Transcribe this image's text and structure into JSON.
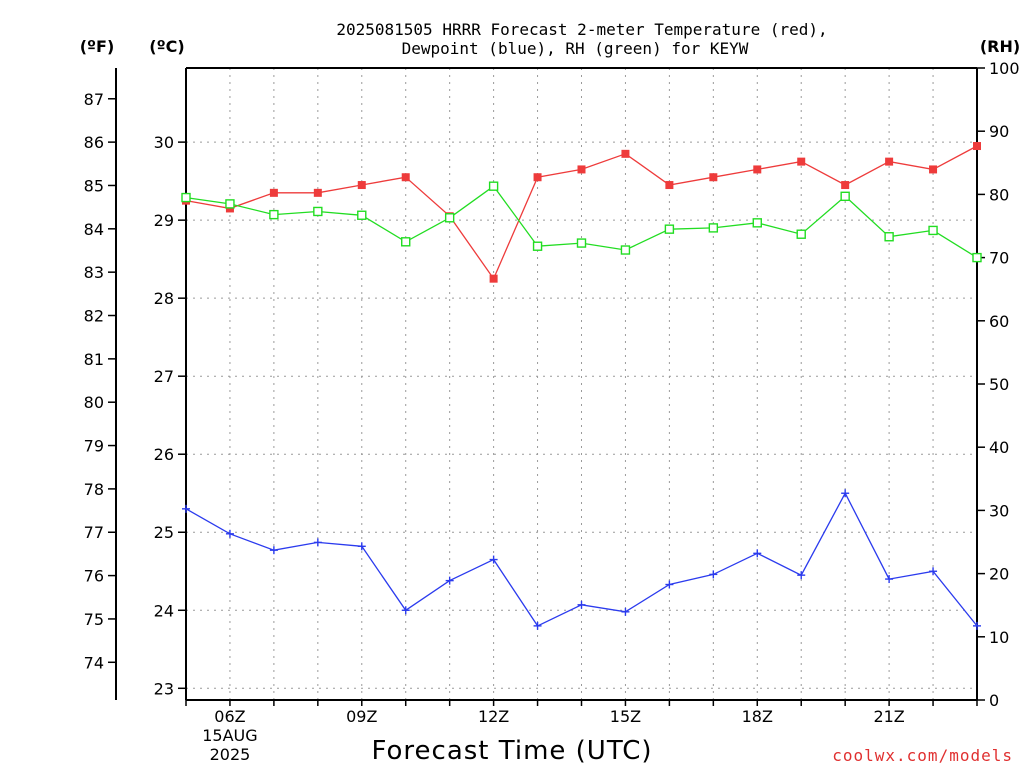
{
  "title_line1": "2025081505 HRRR Forecast 2-meter Temperature (red),",
  "title_line2": "Dewpoint (blue), RH (green) for KEYW",
  "unit_f": "(ºF)",
  "unit_c": "(ºC)",
  "unit_rh": "(RH)",
  "xlabel": "Forecast Time (UTC)",
  "credit": "coolwx.com/models",
  "colors": {
    "temperature": "#ee3b3b",
    "dewpoint": "#2b3bee",
    "rh": "#22dd22",
    "credit": "#e03030"
  },
  "chart_data": {
    "type": "line",
    "x_hours": [
      5,
      6,
      7,
      8,
      9,
      10,
      11,
      12,
      13,
      14,
      15,
      16,
      17,
      18,
      19,
      20,
      21,
      22,
      23
    ],
    "x_ticks": [
      {
        "hour": 6,
        "label": "06Z",
        "sub1": "15AUG",
        "sub2": "2025"
      },
      {
        "hour": 9,
        "label": "09Z"
      },
      {
        "hour": 12,
        "label": "12Z"
      },
      {
        "hour": 15,
        "label": "15Z"
      },
      {
        "hour": 18,
        "label": "18Z"
      },
      {
        "hour": 21,
        "label": "21Z"
      }
    ],
    "xlim": [
      5,
      23
    ],
    "axes": {
      "celsius": {
        "ylim": [
          22.85,
          30.95
        ],
        "ticks": [
          23,
          24,
          25,
          26,
          27,
          28,
          29,
          30
        ]
      },
      "fahrenheit": {
        "ticks": [
          74,
          75,
          76,
          77,
          78,
          79,
          80,
          81,
          82,
          83,
          84,
          85,
          86,
          87
        ]
      },
      "rh": {
        "ylim": [
          0,
          100
        ],
        "ticks": [
          0,
          10,
          20,
          30,
          40,
          50,
          60,
          70,
          80,
          90,
          100
        ]
      }
    },
    "series": [
      {
        "name": "Temperature (red)",
        "axis": "celsius",
        "marker": "filled-square",
        "values": [
          29.25,
          29.15,
          29.35,
          29.35,
          29.45,
          29.55,
          29.05,
          28.25,
          29.55,
          29.65,
          29.85,
          29.45,
          29.55,
          29.65,
          29.75,
          29.45,
          29.75,
          29.65,
          29.95
        ]
      },
      {
        "name": "Dewpoint (blue)",
        "axis": "celsius",
        "marker": "plus",
        "values": [
          25.3,
          24.98,
          24.77,
          24.87,
          24.82,
          24.0,
          24.38,
          24.65,
          23.8,
          24.07,
          23.98,
          24.33,
          24.46,
          24.73,
          24.45,
          25.5,
          24.4,
          24.5,
          23.8
        ]
      },
      {
        "name": "RH (green)",
        "axis": "rh",
        "marker": "open-square",
        "values": [
          79.5,
          78.5,
          76.8,
          77.3,
          76.7,
          72.5,
          76.3,
          81.3,
          71.8,
          72.3,
          71.2,
          74.5,
          74.7,
          75.5,
          73.7,
          79.7,
          73.3,
          74.3,
          70.0
        ]
      }
    ]
  }
}
